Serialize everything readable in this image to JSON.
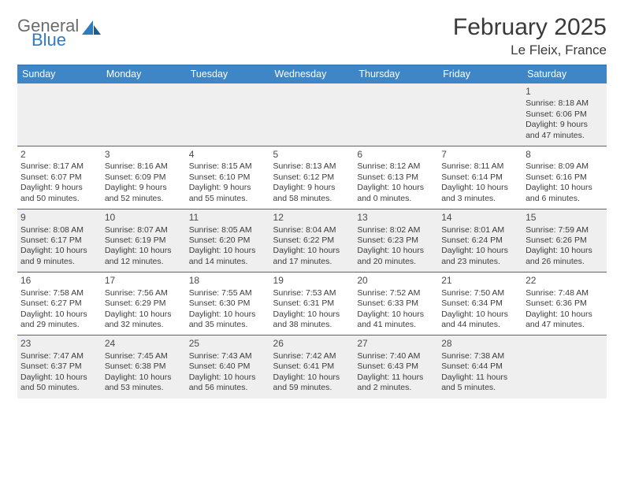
{
  "brand": {
    "general": "General",
    "blue": "Blue"
  },
  "title": "February 2025",
  "location": "Le Fleix, France",
  "colors": {
    "header_bg": "#3f86c6",
    "header_text": "#ffffff",
    "rule": "#2f6ea8",
    "shade": "#efefef",
    "text": "#3c3c3c",
    "logo_gray": "#6b6b6b",
    "logo_blue": "#2f7bbf",
    "page_bg": "#ffffff"
  },
  "day_headers": [
    "Sunday",
    "Monday",
    "Tuesday",
    "Wednesday",
    "Thursday",
    "Friday",
    "Saturday"
  ],
  "weeks": [
    {
      "shaded": true,
      "cells": [
        null,
        null,
        null,
        null,
        null,
        null,
        {
          "n": "1",
          "sunrise": "Sunrise: 8:18 AM",
          "sunset": "Sunset: 6:06 PM",
          "day1": "Daylight: 9 hours",
          "day2": "and 47 minutes."
        }
      ]
    },
    {
      "shaded": false,
      "cells": [
        {
          "n": "2",
          "sunrise": "Sunrise: 8:17 AM",
          "sunset": "Sunset: 6:07 PM",
          "day1": "Daylight: 9 hours",
          "day2": "and 50 minutes."
        },
        {
          "n": "3",
          "sunrise": "Sunrise: 8:16 AM",
          "sunset": "Sunset: 6:09 PM",
          "day1": "Daylight: 9 hours",
          "day2": "and 52 minutes."
        },
        {
          "n": "4",
          "sunrise": "Sunrise: 8:15 AM",
          "sunset": "Sunset: 6:10 PM",
          "day1": "Daylight: 9 hours",
          "day2": "and 55 minutes."
        },
        {
          "n": "5",
          "sunrise": "Sunrise: 8:13 AM",
          "sunset": "Sunset: 6:12 PM",
          "day1": "Daylight: 9 hours",
          "day2": "and 58 minutes."
        },
        {
          "n": "6",
          "sunrise": "Sunrise: 8:12 AM",
          "sunset": "Sunset: 6:13 PM",
          "day1": "Daylight: 10 hours",
          "day2": "and 0 minutes."
        },
        {
          "n": "7",
          "sunrise": "Sunrise: 8:11 AM",
          "sunset": "Sunset: 6:14 PM",
          "day1": "Daylight: 10 hours",
          "day2": "and 3 minutes."
        },
        {
          "n": "8",
          "sunrise": "Sunrise: 8:09 AM",
          "sunset": "Sunset: 6:16 PM",
          "day1": "Daylight: 10 hours",
          "day2": "and 6 minutes."
        }
      ]
    },
    {
      "shaded": true,
      "cells": [
        {
          "n": "9",
          "sunrise": "Sunrise: 8:08 AM",
          "sunset": "Sunset: 6:17 PM",
          "day1": "Daylight: 10 hours",
          "day2": "and 9 minutes."
        },
        {
          "n": "10",
          "sunrise": "Sunrise: 8:07 AM",
          "sunset": "Sunset: 6:19 PM",
          "day1": "Daylight: 10 hours",
          "day2": "and 12 minutes."
        },
        {
          "n": "11",
          "sunrise": "Sunrise: 8:05 AM",
          "sunset": "Sunset: 6:20 PM",
          "day1": "Daylight: 10 hours",
          "day2": "and 14 minutes."
        },
        {
          "n": "12",
          "sunrise": "Sunrise: 8:04 AM",
          "sunset": "Sunset: 6:22 PM",
          "day1": "Daylight: 10 hours",
          "day2": "and 17 minutes."
        },
        {
          "n": "13",
          "sunrise": "Sunrise: 8:02 AM",
          "sunset": "Sunset: 6:23 PM",
          "day1": "Daylight: 10 hours",
          "day2": "and 20 minutes."
        },
        {
          "n": "14",
          "sunrise": "Sunrise: 8:01 AM",
          "sunset": "Sunset: 6:24 PM",
          "day1": "Daylight: 10 hours",
          "day2": "and 23 minutes."
        },
        {
          "n": "15",
          "sunrise": "Sunrise: 7:59 AM",
          "sunset": "Sunset: 6:26 PM",
          "day1": "Daylight: 10 hours",
          "day2": "and 26 minutes."
        }
      ]
    },
    {
      "shaded": false,
      "cells": [
        {
          "n": "16",
          "sunrise": "Sunrise: 7:58 AM",
          "sunset": "Sunset: 6:27 PM",
          "day1": "Daylight: 10 hours",
          "day2": "and 29 minutes."
        },
        {
          "n": "17",
          "sunrise": "Sunrise: 7:56 AM",
          "sunset": "Sunset: 6:29 PM",
          "day1": "Daylight: 10 hours",
          "day2": "and 32 minutes."
        },
        {
          "n": "18",
          "sunrise": "Sunrise: 7:55 AM",
          "sunset": "Sunset: 6:30 PM",
          "day1": "Daylight: 10 hours",
          "day2": "and 35 minutes."
        },
        {
          "n": "19",
          "sunrise": "Sunrise: 7:53 AM",
          "sunset": "Sunset: 6:31 PM",
          "day1": "Daylight: 10 hours",
          "day2": "and 38 minutes."
        },
        {
          "n": "20",
          "sunrise": "Sunrise: 7:52 AM",
          "sunset": "Sunset: 6:33 PM",
          "day1": "Daylight: 10 hours",
          "day2": "and 41 minutes."
        },
        {
          "n": "21",
          "sunrise": "Sunrise: 7:50 AM",
          "sunset": "Sunset: 6:34 PM",
          "day1": "Daylight: 10 hours",
          "day2": "and 44 minutes."
        },
        {
          "n": "22",
          "sunrise": "Sunrise: 7:48 AM",
          "sunset": "Sunset: 6:36 PM",
          "day1": "Daylight: 10 hours",
          "day2": "and 47 minutes."
        }
      ]
    },
    {
      "shaded": true,
      "cells": [
        {
          "n": "23",
          "sunrise": "Sunrise: 7:47 AM",
          "sunset": "Sunset: 6:37 PM",
          "day1": "Daylight: 10 hours",
          "day2": "and 50 minutes."
        },
        {
          "n": "24",
          "sunrise": "Sunrise: 7:45 AM",
          "sunset": "Sunset: 6:38 PM",
          "day1": "Daylight: 10 hours",
          "day2": "and 53 minutes."
        },
        {
          "n": "25",
          "sunrise": "Sunrise: 7:43 AM",
          "sunset": "Sunset: 6:40 PM",
          "day1": "Daylight: 10 hours",
          "day2": "and 56 minutes."
        },
        {
          "n": "26",
          "sunrise": "Sunrise: 7:42 AM",
          "sunset": "Sunset: 6:41 PM",
          "day1": "Daylight: 10 hours",
          "day2": "and 59 minutes."
        },
        {
          "n": "27",
          "sunrise": "Sunrise: 7:40 AM",
          "sunset": "Sunset: 6:43 PM",
          "day1": "Daylight: 11 hours",
          "day2": "and 2 minutes."
        },
        {
          "n": "28",
          "sunrise": "Sunrise: 7:38 AM",
          "sunset": "Sunset: 6:44 PM",
          "day1": "Daylight: 11 hours",
          "day2": "and 5 minutes."
        },
        null
      ]
    }
  ]
}
